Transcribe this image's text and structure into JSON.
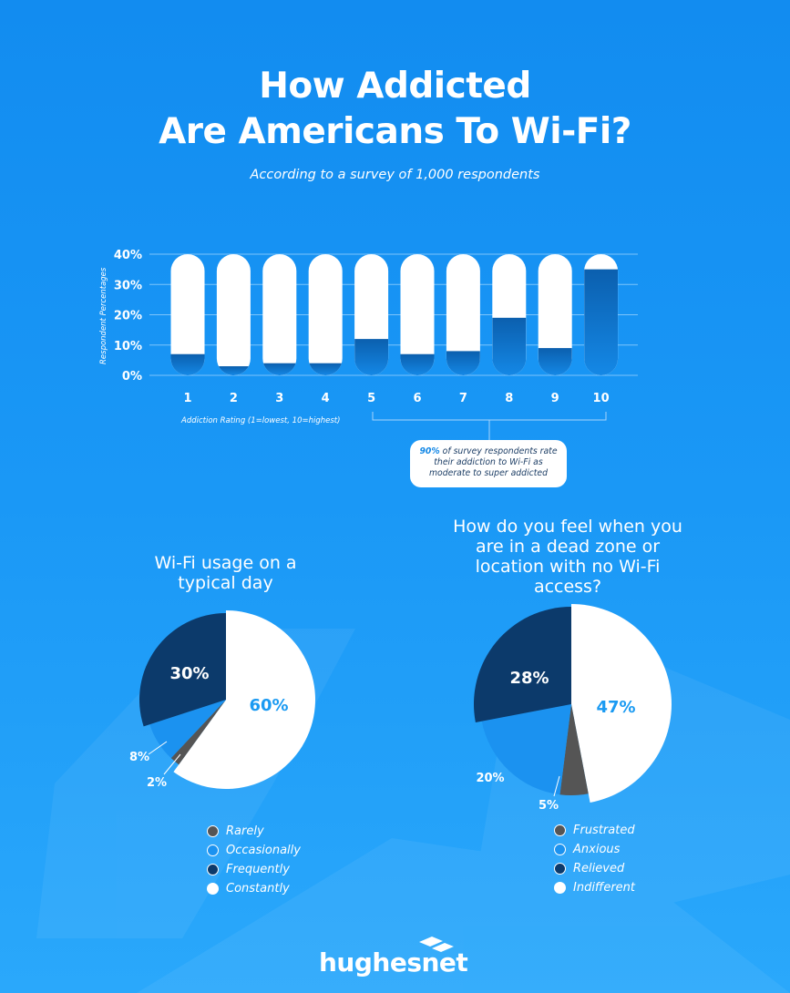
{
  "header": {
    "title_line1": "How Addicted",
    "title_line2": "Are Americans To Wi-Fi?",
    "subtitle": "According to a survey of 1,000 respondents"
  },
  "callout": {
    "highlight": "90%",
    "text": " of survey respondents rate their addiction to Wi-Fi as moderate to super addicted"
  },
  "colors": {
    "dark_navy": "#0c3a6b",
    "mid_blue": "#0a76d6",
    "bright_blue": "#1b92f0",
    "gray": "#555555",
    "white": "#ffffff",
    "accent_text": "#1a9af2"
  },
  "chart_data": [
    {
      "type": "bar",
      "title": "",
      "xlabel": "Addiction Rating (1=lowest, 10=highest)",
      "ylabel": "Respondent Percentages",
      "categories": [
        "1",
        "2",
        "3",
        "4",
        "5",
        "6",
        "7",
        "8",
        "9",
        "10"
      ],
      "values": [
        7,
        3,
        4,
        4,
        12,
        7,
        8,
        19,
        9,
        35
      ],
      "ylim": [
        0,
        40
      ],
      "yticks": [
        "0%",
        "10%",
        "20%",
        "30%",
        "40%"
      ],
      "grid": true
    },
    {
      "type": "pie",
      "title": "Wi-Fi usage on a typical day",
      "labels": [
        "Rarely",
        "Occasionally",
        "Frequently",
        "Constantly"
      ],
      "values": [
        2,
        8,
        30,
        60
      ],
      "value_labels": [
        "2%",
        "8%",
        "30%",
        "60%"
      ],
      "colors": [
        "#555555",
        "#1b92f0",
        "#0c3a6b",
        "#ffffff"
      ],
      "legend": "bottom"
    },
    {
      "type": "pie",
      "title": "How do you feel when you are in a dead zone or location with no Wi-Fi access?",
      "title_lines": [
        "How do you feel when you",
        "are in a dead zone or",
        "location with no Wi-Fi",
        "access?"
      ],
      "labels": [
        "Frustrated",
        "Anxious",
        "Relieved",
        "Indifferent"
      ],
      "values": [
        5,
        20,
        28,
        47
      ],
      "value_labels": [
        "5%",
        "20%",
        "28%",
        "47%"
      ],
      "colors": [
        "#555555",
        "#1b92f0",
        "#0c3a6b",
        "#ffffff"
      ],
      "legend": "bottom"
    }
  ],
  "brand": {
    "name": "hughesnet"
  }
}
